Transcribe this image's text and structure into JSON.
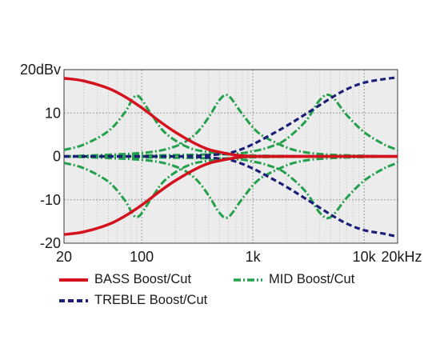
{
  "chart_data": {
    "type": "line",
    "x_scale": "log",
    "xlim": [
      20,
      20000
    ],
    "ylim": [
      -20,
      20
    ],
    "grid": true,
    "legend_placement": "bottom",
    "x_ticks": [
      {
        "value": 20,
        "label": "20"
      },
      {
        "value": 100,
        "label": "100"
      },
      {
        "value": 1000,
        "label": "1k"
      },
      {
        "value": 10000,
        "label": "10k"
      },
      {
        "value": 20000,
        "label": "20kHz"
      }
    ],
    "y_ticks": [
      {
        "value": 20,
        "label": "20dBv"
      },
      {
        "value": 10,
        "label": "10"
      },
      {
        "value": 0,
        "label": "0"
      },
      {
        "value": -10,
        "label": "-10"
      },
      {
        "value": -20,
        "label": "-20"
      }
    ],
    "series": [
      {
        "name": "BASS Boost/Cut",
        "color": "#d4121e",
        "style": "solid",
        "curves": [
          {
            "x": [
              20,
              30,
              50,
              70,
              100,
              150,
              200,
              300,
              400,
              500,
              700,
              1000,
              2000,
              20000
            ],
            "y": [
              18,
              17.4,
              15.7,
              13.8,
              11.2,
              7.8,
              5.6,
              3.0,
              1.6,
              1.0,
              0.3,
              0,
              0,
              0
            ]
          },
          {
            "x": [
              20,
              30,
              50,
              70,
              100,
              150,
              200,
              300,
              400,
              500,
              700,
              1000,
              2000,
              20000
            ],
            "y": [
              -18,
              -17.4,
              -15.7,
              -13.8,
              -11.2,
              -7.8,
              -5.6,
              -3.0,
              -1.6,
              -1.0,
              -0.3,
              0,
              0,
              0
            ]
          }
        ]
      },
      {
        "name": "TREBLE Boost/Cut",
        "color": "#1c1f78",
        "style": "dashed",
        "curves": [
          {
            "x": [
              20,
              200,
              500,
              700,
              1000,
              1500,
              2000,
              3000,
              5000,
              7000,
              10000,
              15000,
              20000
            ],
            "y": [
              0,
              0,
              0.5,
              1.2,
              2.8,
              5.2,
              7.0,
              9.8,
              13.4,
              15.5,
              17.0,
              17.8,
              18.2
            ]
          },
          {
            "x": [
              20,
              200,
              500,
              700,
              1000,
              1500,
              2000,
              3000,
              5000,
              7000,
              10000,
              15000,
              20000
            ],
            "y": [
              0,
              0,
              -0.5,
              -1.2,
              -2.8,
              -5.2,
              -7.0,
              -9.8,
              -13.4,
              -15.5,
              -17.0,
              -17.8,
              -18.5
            ]
          }
        ]
      },
      {
        "name": "MID Boost/Cut",
        "color": "#22a04b",
        "style": "dashdot",
        "curves": [
          {
            "x": [
              20,
              30,
              50,
              70,
              90,
              120,
              160,
              250,
              400,
              1000,
              20000
            ],
            "y": [
              1.5,
              2.7,
              5.8,
              10.0,
              14.0,
              10.0,
              5.6,
              2.3,
              1.0,
              0.2,
              0
            ]
          },
          {
            "x": [
              20,
              30,
              50,
              70,
              90,
              120,
              160,
              250,
              400,
              1000,
              20000
            ],
            "y": [
              -1.5,
              -2.7,
              -5.8,
              -10.0,
              -14.0,
              -10.0,
              -5.6,
              -2.3,
              -1.0,
              -0.2,
              0
            ]
          },
          {
            "x": [
              20,
              100,
              200,
              300,
              400,
              500,
              600,
              800,
              1100,
              1600,
              2500,
              5000,
              20000
            ],
            "y": [
              0,
              0.8,
              2.3,
              5.0,
              9.0,
              13.0,
              14.0,
              9.8,
              5.6,
              3.2,
              1.3,
              0.4,
              0
            ]
          },
          {
            "x": [
              20,
              100,
              200,
              300,
              400,
              500,
              600,
              800,
              1100,
              1600,
              2500,
              5000,
              20000
            ],
            "y": [
              0,
              -0.8,
              -2.3,
              -5.0,
              -9.0,
              -13.0,
              -14.0,
              -9.8,
              -5.6,
              -3.2,
              -1.3,
              -0.4,
              0
            ]
          },
          {
            "x": [
              20,
              500,
              1000,
              1500,
              2000,
              3000,
              4000,
              5000,
              7000,
              10000,
              15000,
              20000
            ],
            "y": [
              0,
              0.5,
              1.2,
              2.4,
              4.0,
              8.2,
              13.0,
              14.0,
              9.5,
              5.6,
              2.8,
              1.5
            ]
          },
          {
            "x": [
              20,
              500,
              1000,
              1500,
              2000,
              3000,
              4000,
              5000,
              7000,
              10000,
              15000,
              20000
            ],
            "y": [
              0,
              -0.5,
              -1.2,
              -2.4,
              -4.0,
              -8.2,
              -13.0,
              -14.0,
              -9.5,
              -5.6,
              -2.8,
              -1.5
            ]
          }
        ]
      }
    ]
  }
}
